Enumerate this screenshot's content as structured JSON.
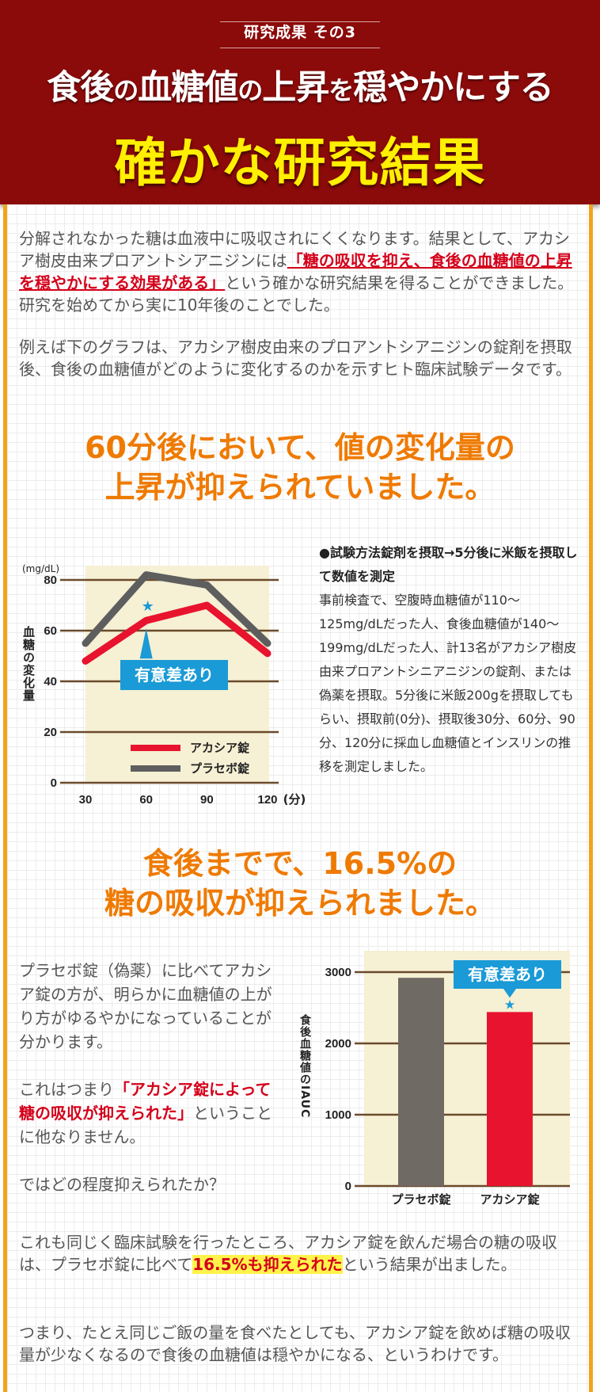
{
  "header": {
    "tag": "研究成果 その3",
    "title_parts": [
      "食後",
      "の",
      "血糖値",
      "の",
      "上昇",
      "を",
      "穏やかにする"
    ],
    "subtitle": "確かな研究結果"
  },
  "intro": {
    "p1_a": "分解されなかった糖は血液中に吸収されにくくなります。結果として、アカシア樹皮由来プロアントシアニジンには",
    "p1_red": "「糖の吸収を抑え、食後の血糖値の上昇を穏やかにする効果がある」",
    "p1_b": "という確かな研究結果を得ることができました。研究を始めてから実に10年後のことでした。",
    "p2": "例えば下のグラフは、アカシア樹皮由来のプロアントシアニジンの錠剤を摂取後、食後の血糖値がどのように変化するのかを示すヒト臨床試験データです。"
  },
  "headline1": [
    "60分後において、値の変化量の",
    "上昇が抑えられていました。"
  ],
  "chart_data": [
    {
      "type": "line",
      "unit_label": "(mg/dL)",
      "ylabel": "血糖の変化量",
      "x": [
        30,
        60,
        90,
        120
      ],
      "x_tick_labels": [
        "30",
        "60",
        "90",
        "120"
      ],
      "x_unit": "(分)",
      "y_ticks": [
        0,
        20,
        40,
        60,
        80
      ],
      "ylim": [
        0,
        80
      ],
      "grid": true,
      "series": [
        {
          "name": "アカシア錠",
          "values": [
            48,
            64,
            70,
            51
          ],
          "color": "#e8132e"
        },
        {
          "name": "プラセボ錠",
          "values": [
            55,
            82,
            78,
            55
          ],
          "color": "#5e5e5e"
        }
      ],
      "annotation": "有意差あり",
      "annotation_marker": "★",
      "legend_position": "bottom-right"
    },
    {
      "type": "bar",
      "ylabel": "食後血糖値のIAUC",
      "categories": [
        "プラセボ錠",
        "アカシア錠"
      ],
      "values": [
        2920,
        2440
      ],
      "colors": [
        "#6f6a63",
        "#e8132e"
      ],
      "y_ticks": [
        0,
        1000,
        2000,
        3000
      ],
      "ylim": [
        0,
        3300
      ],
      "grid": true,
      "annotation": "有意差あり",
      "annotation_marker": "★"
    }
  ],
  "method": {
    "title": "●試験方法錠剤を摂取→5分後に米飯を摂取して数値を測定",
    "body": "事前検査で、空腹時血糖値が110〜125mg/dLだった人、食後血糖値が140〜199mg/dLだった人、計13名がアカシア樹皮由来プロアントシニアニジンの錠剤、または偽薬を摂取。5分後に米飯200gを摂取してもらい、摂取前(0分)、摂取後30分、60分、90分、120分に採血し血糖値とインスリンの推移を測定しました。"
  },
  "headline2": [
    "食後までで、16.5%の",
    "糖の吸収が抑えられました。"
  ],
  "section2": {
    "p1": "プラセボ錠（偽薬）に比べてアカシア錠の方が、明らかに血糖値の上がり方がゆるやかになっていることが分かります。",
    "p2_a": "これはつまり",
    "p2_red": "「アカシア錠によって糖の吸収が抑えられた」",
    "p2_b": "ということに他なりません。",
    "p3": "ではどの程度抑えられたか？"
  },
  "conclusion": {
    "p1_a": "これも同じく臨床試験を行ったところ、アカシア錠を飲んだ場合の糖の吸収は、プラセボ錠に比べて",
    "p1_hl": "16.5%も抑えられた",
    "p1_b": "という結果が出ました。",
    "p2": "つまり、たとえ同じご飯の量を食べたとしても、アカシア錠を飲めば糖の吸収量が少なくなるので食後の血糖値は穏やかになる、というわけです。"
  },
  "colors": {
    "header_bg": "#8b0a0a",
    "header_sub": "#ffef00",
    "accent_orange": "#ef7a00",
    "frame_border": "#f0a41c",
    "highlight_red": "#d4001a",
    "badge_blue": "#1a9ad6",
    "chart_bg": "#f6f0d4",
    "grid_line": "#6b4a2b"
  }
}
